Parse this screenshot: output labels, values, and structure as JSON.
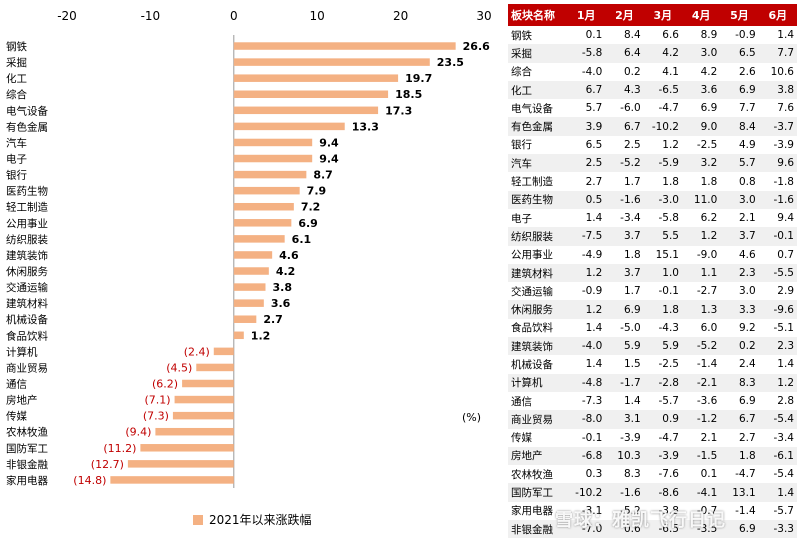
{
  "colors": {
    "bar": "#f4b183",
    "header_bg": "#c00000",
    "negative_label": "#c00000"
  },
  "unit_label": "(%)",
  "chart_data": {
    "type": "bar",
    "orientation": "horizontal",
    "legend": "2021年以来涨跌幅",
    "legend_position": "bottom",
    "xlim": [
      -20,
      30
    ],
    "xticks": [
      -20,
      -10,
      0,
      10,
      20,
      30
    ],
    "xtick_labels": [
      "-20",
      "-10",
      "0",
      "10",
      "20",
      "30"
    ],
    "categories": [
      "钢铁",
      "采掘",
      "化工",
      "综合",
      "电气设备",
      "有色金属",
      "汽车",
      "电子",
      "银行",
      "医药生物",
      "轻工制造",
      "公用事业",
      "纺织服装",
      "建筑装饰",
      "休闲服务",
      "交通运输",
      "建筑材料",
      "机械设备",
      "食品饮料",
      "计算机",
      "商业贸易",
      "通信",
      "房地产",
      "传媒",
      "农林牧渔",
      "国防军工",
      "非银金融",
      "家用电器"
    ],
    "values": [
      26.6,
      23.5,
      19.7,
      18.5,
      17.3,
      13.3,
      9.4,
      9.4,
      8.7,
      7.9,
      7.2,
      6.9,
      6.1,
      4.6,
      4.2,
      3.8,
      3.6,
      2.7,
      1.2,
      -2.4,
      -4.5,
      -6.2,
      -7.1,
      -7.3,
      -9.4,
      -11.2,
      -12.7,
      -14.8
    ],
    "value_labels": [
      "26.6",
      "23.5",
      "19.7",
      "18.5",
      "17.3",
      "13.3",
      "9.4",
      "9.4",
      "8.7",
      "7.9",
      "7.2",
      "6.9",
      "6.1",
      "4.6",
      "4.2",
      "3.8",
      "3.6",
      "2.7",
      "1.2",
      "(2.4)",
      "(4.5)",
      "(6.2)",
      "(7.1)",
      "(7.3)",
      "(9.4)",
      "(11.2)",
      "(12.7)",
      "(14.8)"
    ]
  },
  "table": {
    "headers": [
      "板块名称",
      "1月",
      "2月",
      "3月",
      "4月",
      "5月",
      "6月"
    ],
    "rows": [
      [
        "钢铁",
        "0.1",
        "8.4",
        "6.6",
        "8.9",
        "-0.9",
        "1.4"
      ],
      [
        "采掘",
        "-5.8",
        "6.4",
        "4.2",
        "3.0",
        "6.5",
        "7.7"
      ],
      [
        "综合",
        "-4.0",
        "0.2",
        "4.1",
        "4.2",
        "2.6",
        "10.6"
      ],
      [
        "化工",
        "6.7",
        "4.3",
        "-6.5",
        "3.6",
        "6.9",
        "3.8"
      ],
      [
        "电气设备",
        "5.7",
        "-6.0",
        "-4.7",
        "6.9",
        "7.7",
        "7.6"
      ],
      [
        "有色金属",
        "3.9",
        "6.7",
        "-10.2",
        "9.0",
        "8.4",
        "-3.7"
      ],
      [
        "银行",
        "6.5",
        "2.5",
        "1.2",
        "-2.5",
        "4.9",
        "-3.9"
      ],
      [
        "汽车",
        "2.5",
        "-5.2",
        "-5.9",
        "3.2",
        "5.7",
        "9.6"
      ],
      [
        "轻工制造",
        "2.7",
        "1.7",
        "1.8",
        "1.8",
        "0.8",
        "-1.8"
      ],
      [
        "医药生物",
        "0.5",
        "-1.6",
        "-3.0",
        "11.0",
        "3.0",
        "-1.6"
      ],
      [
        "电子",
        "1.4",
        "-3.4",
        "-5.8",
        "6.2",
        "2.1",
        "9.4"
      ],
      [
        "纺织服装",
        "-7.5",
        "3.7",
        "5.5",
        "1.2",
        "3.7",
        "-0.1"
      ],
      [
        "公用事业",
        "-4.9",
        "1.8",
        "15.1",
        "-9.0",
        "4.6",
        "0.7"
      ],
      [
        "建筑材料",
        "1.2",
        "3.7",
        "1.0",
        "1.1",
        "2.3",
        "-5.5"
      ],
      [
        "交通运输",
        "-0.9",
        "1.7",
        "-0.1",
        "-2.7",
        "3.0",
        "2.9"
      ],
      [
        "休闲服务",
        "1.2",
        "6.9",
        "1.8",
        "1.3",
        "3.3",
        "-9.6"
      ],
      [
        "食品饮料",
        "1.4",
        "-5.0",
        "-4.3",
        "6.0",
        "9.2",
        "-5.1"
      ],
      [
        "建筑装饰",
        "-4.0",
        "5.9",
        "5.9",
        "-5.2",
        "0.2",
        "2.3"
      ],
      [
        "机械设备",
        "1.4",
        "1.5",
        "-2.5",
        "-1.4",
        "2.4",
        "1.4"
      ],
      [
        "计算机",
        "-4.8",
        "-1.7",
        "-2.8",
        "-2.1",
        "8.3",
        "1.2"
      ],
      [
        "通信",
        "-7.3",
        "1.4",
        "-5.7",
        "-3.6",
        "6.9",
        "2.8"
      ],
      [
        "商业贸易",
        "-8.0",
        "3.1",
        "0.9",
        "-1.2",
        "6.7",
        "-5.4"
      ],
      [
        "传媒",
        "-0.1",
        "-3.9",
        "-4.7",
        "2.1",
        "2.7",
        "-3.4"
      ],
      [
        "房地产",
        "-6.8",
        "10.3",
        "-3.9",
        "-1.5",
        "1.8",
        "-6.1"
      ],
      [
        "农林牧渔",
        "0.3",
        "8.3",
        "-7.6",
        "0.1",
        "-4.7",
        "-5.4"
      ],
      [
        "国防军工",
        "-10.2",
        "-1.6",
        "-8.6",
        "-4.1",
        "13.1",
        "1.4"
      ],
      [
        "家用电器",
        "-3.1",
        "-5.2",
        "-3.8",
        "-0.7",
        "-1.4",
        "-5.7"
      ],
      [
        "非银金融",
        "-7.0",
        "0.6",
        "-6.5",
        "-3.5",
        "6.9",
        "-3.3"
      ]
    ]
  },
  "watermark": "雪球：雅凯飞行日记"
}
